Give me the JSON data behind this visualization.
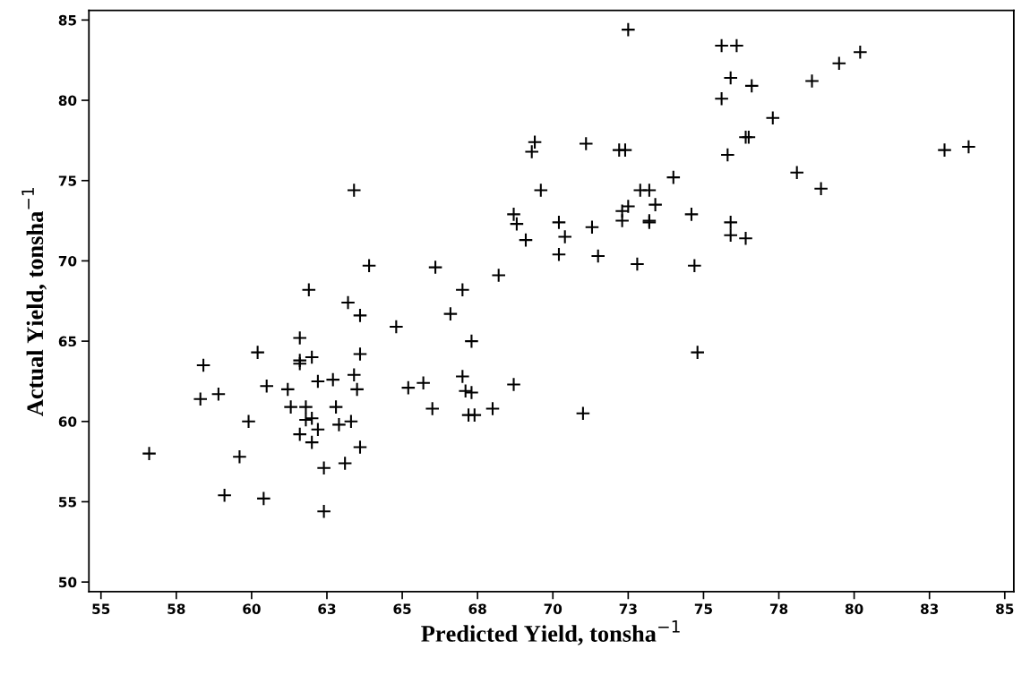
{
  "chart_data": {
    "type": "scatter",
    "xlabel": "Predicted Yield, tonsha$^{−1}$",
    "ylabel": "Actual Yield, tonsha$^{−1}$",
    "marker": "cross",
    "grid": false,
    "xlim": [
      54.6,
      85.3
    ],
    "ylim": [
      49.4,
      85.6
    ],
    "xticks": [
      55,
      {
        "value": 57.5,
        "label": "58"
      },
      60,
      {
        "value": 62.5,
        "label": "63"
      },
      65,
      {
        "value": 67.5,
        "label": "68"
      },
      70,
      {
        "value": 72.5,
        "label": "73"
      },
      75,
      {
        "value": 77.5,
        "label": "78"
      },
      80,
      {
        "value": 82.5,
        "label": "83"
      },
      85
    ],
    "yticks": [
      50,
      55,
      60,
      65,
      70,
      75,
      80,
      85
    ],
    "series": [
      {
        "color": "#000000",
        "x": [
          63.9,
          61.9,
          63.2,
          63.6,
          64.8,
          61.6,
          60.2,
          58.4,
          61.6,
          61.6,
          62.0,
          63.6,
          63.4,
          60.5,
          61.2,
          62.2,
          62.7,
          63.5,
          65.2,
          65.7,
          58.3,
          58.9,
          61.3,
          61.8,
          62.8,
          59.9,
          61.8,
          62.0,
          62.2,
          62.9,
          63.3,
          61.6,
          62.0,
          63.6,
          56.6,
          59.6,
          62.4,
          63.1,
          59.1,
          60.4,
          62.4,
          66.1,
          66.0,
          63.4,
          72.5,
          75.6,
          76.1,
          80.2,
          79.5,
          75.9,
          76.6,
          75.6,
          78.6,
          77.3,
          76.4,
          76.5,
          83.0,
          83.8,
          69.4,
          69.3,
          71.1,
          72.2,
          72.4,
          75.8,
          78.1,
          78.9,
          74.0,
          69.6,
          72.9,
          73.2,
          73.4,
          72.5,
          72.3,
          72.3,
          73.2,
          73.2,
          74.6,
          75.9,
          75.9,
          76.4,
          68.7,
          68.8,
          70.2,
          71.3,
          69.1,
          70.4,
          70.2,
          71.5,
          72.8,
          74.7,
          68.2,
          67.0,
          66.6,
          67.3,
          74.8,
          67.0,
          67.1,
          67.3,
          68.7,
          68.0,
          67.2,
          67.4,
          71.0
        ],
        "values": [
          69.7,
          68.2,
          67.4,
          66.6,
          65.9,
          65.2,
          64.3,
          63.5,
          63.8,
          63.6,
          64.0,
          64.2,
          62.9,
          62.2,
          62.0,
          62.5,
          62.6,
          62.0,
          62.1,
          62.4,
          61.4,
          61.7,
          60.9,
          60.9,
          60.9,
          60.0,
          60.1,
          60.2,
          59.5,
          59.8,
          60.0,
          59.2,
          58.7,
          58.4,
          58.0,
          57.8,
          57.1,
          57.4,
          55.4,
          55.2,
          54.4,
          69.6,
          60.8,
          74.4,
          84.4,
          83.4,
          83.4,
          83.0,
          82.3,
          81.4,
          80.9,
          80.1,
          81.2,
          78.9,
          77.7,
          77.7,
          76.9,
          77.1,
          77.4,
          76.8,
          77.3,
          76.9,
          76.9,
          76.6,
          75.5,
          74.5,
          75.2,
          74.4,
          74.4,
          74.4,
          73.5,
          73.4,
          73.1,
          72.5,
          72.5,
          72.4,
          72.9,
          72.4,
          71.6,
          71.4,
          72.9,
          72.3,
          72.4,
          72.1,
          71.3,
          71.5,
          70.4,
          70.3,
          69.8,
          69.7,
          69.1,
          68.2,
          66.7,
          65.0,
          64.3,
          62.8,
          61.9,
          61.8,
          62.3,
          60.8,
          60.4,
          60.4,
          60.5
        ]
      }
    ]
  }
}
